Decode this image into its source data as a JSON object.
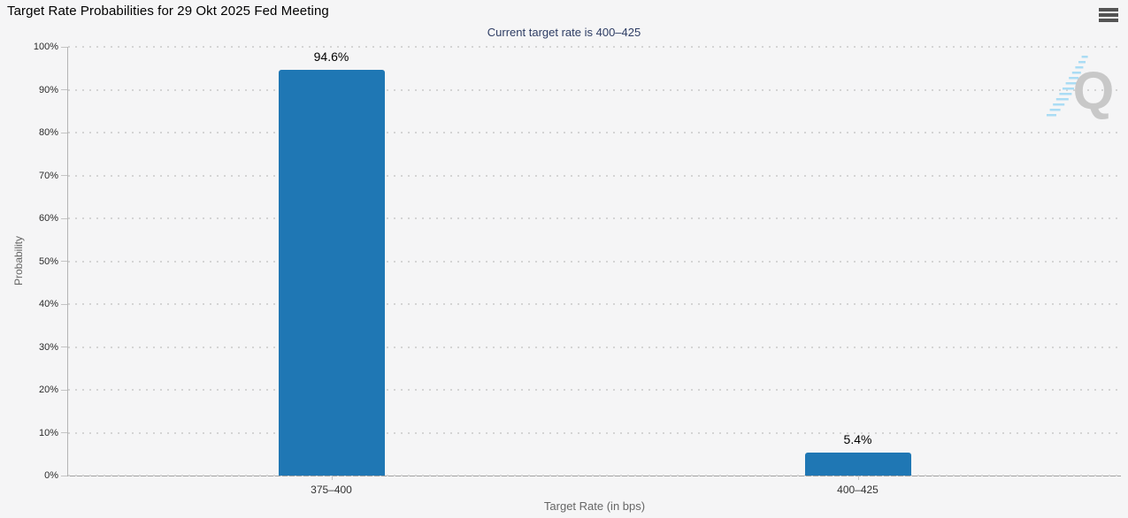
{
  "header": {
    "title": "Target Rate Probabilities for 29 Okt 2025 Fed Meeting",
    "subtitle": "Current target rate is 400–425"
  },
  "menu": {
    "icon": "hamburger-icon",
    "label": "Chart context menu"
  },
  "watermark": {
    "letter": "Q"
  },
  "colors": {
    "background": "#f5f5f6",
    "bar": "#1f77b4",
    "subtitle_text": "#2e3d64",
    "axis_line": "#a0a0a0",
    "gridline": "#d4d4d4",
    "watermark_gray": "#c8c8c8",
    "watermark_blue": "#aadcf4"
  },
  "chart_data": {
    "type": "bar",
    "title": "Target Rate Probabilities for 29 Okt 2025 Fed Meeting",
    "subtitle": "Current target rate is 400–425",
    "categories": [
      "375–400",
      "400–425"
    ],
    "values": [
      94.6,
      5.4
    ],
    "value_labels": [
      "94.6%",
      "5.4%"
    ],
    "xlabel": "Target Rate (in bps)",
    "ylabel": "Probability",
    "ylim": [
      0,
      100
    ],
    "ytick_step": 10,
    "ytick_labels": [
      "0%",
      "10%",
      "20%",
      "30%",
      "40%",
      "50%",
      "60%",
      "70%",
      "80%",
      "90%",
      "100%"
    ],
    "grid": "horizontal-dotted",
    "legend": "none",
    "bar_color": "#1f77b4"
  }
}
